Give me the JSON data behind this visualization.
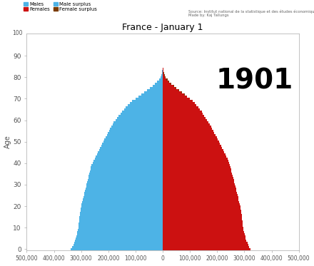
{
  "title": "France - January 1",
  "year_label": "1901",
  "source_text": "Source: Institut national de la statistique et des études économiques\nMade by: Kaj Tallungs",
  "ylabel_label": "Age",
  "male_color": "#4db3e6",
  "female_color": "#cc1111",
  "male_surplus_color": "#4db3e6",
  "female_surplus_color": "#7a3b00",
  "background_color": "#ffffff",
  "xlim": [
    -500000,
    500000
  ],
  "ylim": [
    -0.5,
    100.5
  ],
  "xticks": [
    -500000,
    -400000,
    -300000,
    -200000,
    -100000,
    0,
    100000,
    200000,
    300000,
    400000,
    500000
  ],
  "xtick_labels": [
    "500,000",
    "400,000",
    "300,000",
    "200,000",
    "100,000",
    "0",
    "100,000",
    "200,000",
    "300,000",
    "400,000",
    "500,000"
  ],
  "yticks": [
    0,
    10,
    20,
    30,
    40,
    50,
    60,
    70,
    80,
    90
  ],
  "ages": [
    0,
    1,
    2,
    3,
    4,
    5,
    6,
    7,
    8,
    9,
    10,
    11,
    12,
    13,
    14,
    15,
    16,
    17,
    18,
    19,
    20,
    21,
    22,
    23,
    24,
    25,
    26,
    27,
    28,
    29,
    30,
    31,
    32,
    33,
    34,
    35,
    36,
    37,
    38,
    39,
    40,
    41,
    42,
    43,
    44,
    45,
    46,
    47,
    48,
    49,
    50,
    51,
    52,
    53,
    54,
    55,
    56,
    57,
    58,
    59,
    60,
    61,
    62,
    63,
    64,
    65,
    66,
    67,
    68,
    69,
    70,
    71,
    72,
    73,
    74,
    75,
    76,
    77,
    78,
    79,
    80,
    81,
    82,
    83,
    84,
    85,
    86,
    87,
    88,
    89,
    90,
    91,
    92,
    93,
    94,
    95,
    96,
    97,
    98,
    99
  ],
  "males": [
    338000,
    333000,
    329000,
    326000,
    323000,
    320000,
    318000,
    316000,
    314000,
    312000,
    311000,
    310000,
    309000,
    308000,
    307000,
    306000,
    305000,
    304000,
    303000,
    302000,
    300000,
    298000,
    296000,
    294000,
    292000,
    290000,
    288000,
    286000,
    284000,
    282000,
    280000,
    278000,
    276000,
    274000,
    272000,
    270000,
    268000,
    266000,
    264000,
    262000,
    258000,
    254000,
    250000,
    246000,
    242000,
    238000,
    234000,
    230000,
    226000,
    222000,
    218000,
    214000,
    210000,
    206000,
    202000,
    198000,
    194000,
    190000,
    185000,
    180000,
    174000,
    168000,
    162000,
    156000,
    150000,
    143000,
    136000,
    128000,
    120000,
    112000,
    101000,
    90000,
    79000,
    68000,
    57000,
    47000,
    38000,
    29000,
    21000,
    14000,
    9000,
    5800,
    3500,
    2100,
    1200,
    650,
    330,
    160,
    70,
    28,
    10,
    3,
    1,
    0,
    0,
    0,
    0,
    0,
    0,
    0
  ],
  "females": [
    323000,
    318000,
    314000,
    311000,
    308000,
    305000,
    303000,
    301000,
    299000,
    297000,
    296000,
    295000,
    294000,
    293000,
    292000,
    291000,
    290000,
    289000,
    288000,
    287000,
    285000,
    283000,
    281000,
    279000,
    277000,
    275000,
    273000,
    271000,
    269000,
    267000,
    265000,
    263000,
    261000,
    259000,
    257000,
    255000,
    253000,
    251000,
    249000,
    247000,
    244000,
    241000,
    238000,
    234000,
    230000,
    226000,
    222000,
    218000,
    214000,
    210000,
    206000,
    202000,
    198000,
    194000,
    190000,
    186000,
    182000,
    178000,
    173000,
    168000,
    163000,
    158000,
    153000,
    148000,
    143000,
    137000,
    131000,
    124000,
    117000,
    110000,
    100000,
    90000,
    80000,
    70000,
    60000,
    50000,
    41000,
    32000,
    24000,
    17000,
    11000,
    7200,
    4600,
    2900,
    1800,
    1100,
    650,
    370,
    200,
    100,
    47,
    20,
    7,
    2,
    1,
    0,
    0,
    0,
    0,
    0
  ]
}
